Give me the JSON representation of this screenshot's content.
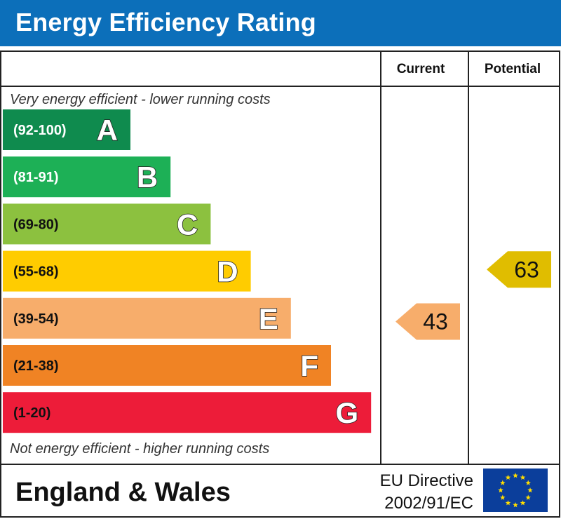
{
  "header": {
    "title": "Energy Efficiency Rating"
  },
  "columns": {
    "current": "Current",
    "potential": "Potential"
  },
  "notes": {
    "top": "Very energy efficient - lower running costs",
    "bottom": "Not energy efficient - higher running costs"
  },
  "footer": {
    "region": "England & Wales",
    "directive_line1": "EU Directive",
    "directive_line2": "2002/91/EC",
    "flag_icon": "eu-flag-icon"
  },
  "chart_data": {
    "type": "bar",
    "title": "Energy Efficiency Rating",
    "bands": [
      {
        "letter": "A",
        "range": "(92-100)",
        "min": 92,
        "max": 100,
        "color": "#0f8b4e",
        "label_color": "#ffffff"
      },
      {
        "letter": "B",
        "range": "(81-91)",
        "min": 81,
        "max": 91,
        "color": "#1db056",
        "label_color": "#ffffff"
      },
      {
        "letter": "C",
        "range": "(69-80)",
        "min": 69,
        "max": 80,
        "color": "#8cc13f",
        "label_color": "#111111"
      },
      {
        "letter": "D",
        "range": "(55-68)",
        "min": 55,
        "max": 68,
        "color": "#ffcc00",
        "label_color": "#111111"
      },
      {
        "letter": "E",
        "range": "(39-54)",
        "min": 39,
        "max": 54,
        "color": "#f7ad6b",
        "label_color": "#111111"
      },
      {
        "letter": "F",
        "range": "(21-38)",
        "min": 21,
        "max": 38,
        "color": "#f08324",
        "label_color": "#111111"
      },
      {
        "letter": "G",
        "range": "(1-20)",
        "min": 1,
        "max": 20,
        "color": "#ed1c39",
        "label_color": "#111111"
      }
    ],
    "current": {
      "value": 43,
      "band": "E",
      "color": "#f7ad6b"
    },
    "potential": {
      "value": 63,
      "band": "D",
      "color": "#e0bd00"
    }
  }
}
